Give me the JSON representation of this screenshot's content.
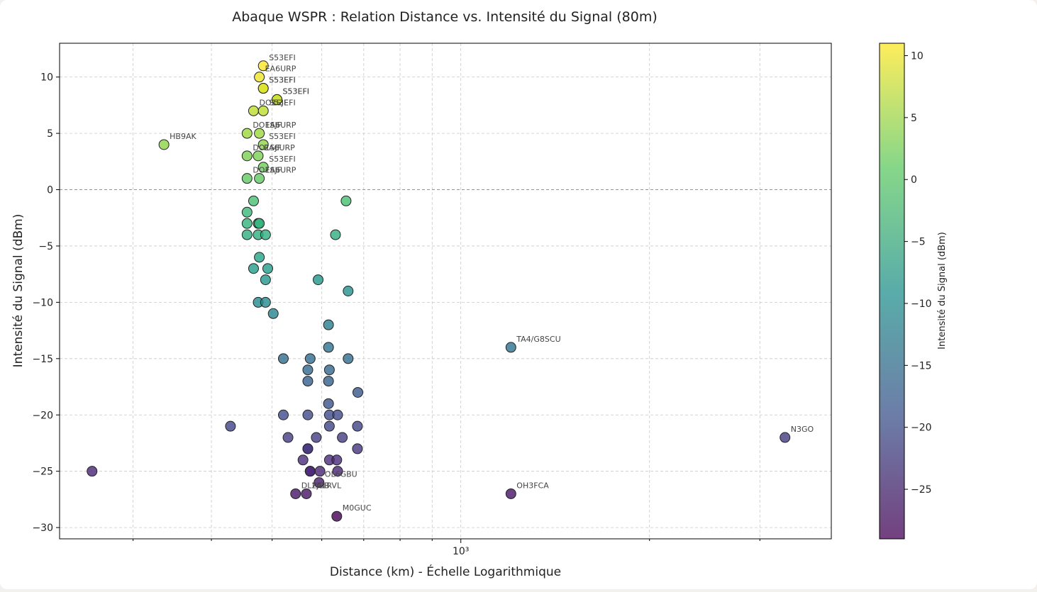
{
  "chart_data": {
    "type": "scatter",
    "title": "Abaque WSPR : Relation Distance vs. Intensité du Signal (80m)",
    "xlabel": "Distance (km) - Échelle Logarithmique",
    "ylabel": "Intensité du Signal (dBm)",
    "x_scale": "log",
    "x_tick_label": "10³",
    "xlim": [
      229,
      3900
    ],
    "ylim": [
      -31,
      13
    ],
    "yticks": [
      -30,
      -25,
      -20,
      -15,
      -10,
      -5,
      0,
      5,
      10
    ],
    "grid": true,
    "reference_line_y": 0,
    "colormap": "viridis",
    "colorbar": {
      "label": "Intensité du Signal (dBm)",
      "range": [
        -29,
        11
      ],
      "ticks": [
        -25,
        -20,
        -15,
        -10,
        -5,
        0,
        5,
        10
      ]
    },
    "points": [
      {
        "x": 258,
        "y": -25
      },
      {
        "x": 336,
        "y": 4,
        "label": "HB9AK"
      },
      {
        "x": 429,
        "y": -21
      },
      {
        "x": 484,
        "y": 11,
        "label": "S53EFI"
      },
      {
        "x": 477,
        "y": 10,
        "label": "EA6URP"
      },
      {
        "x": 484,
        "y": 9,
        "label": "S53EFI"
      },
      {
        "x": 484,
        "y": 9,
        "label": "S53EFI"
      },
      {
        "x": 509,
        "y": 8,
        "label": "S53EFI"
      },
      {
        "x": 509,
        "y": 8,
        "label": "S53EFI"
      },
      {
        "x": 467,
        "y": 7,
        "label": "DO1SJF"
      },
      {
        "x": 484,
        "y": 7,
        "label": "S53EFI"
      },
      {
        "x": 456,
        "y": 5,
        "label": "DO1SJF"
      },
      {
        "x": 477,
        "y": 5,
        "label": "EA6URP"
      },
      {
        "x": 484,
        "y": 4,
        "label": "S53EFI"
      },
      {
        "x": 456,
        "y": 3,
        "label": "DO1SJF"
      },
      {
        "x": 475,
        "y": 3,
        "label": "EA6URP"
      },
      {
        "x": 484,
        "y": 2,
        "label": "S53EFI"
      },
      {
        "x": 456,
        "y": 1,
        "label": "DO1SJF"
      },
      {
        "x": 477,
        "y": 1,
        "label": "EA6URP"
      },
      {
        "x": 467,
        "y": -1
      },
      {
        "x": 456,
        "y": -2
      },
      {
        "x": 456,
        "y": -3
      },
      {
        "x": 475,
        "y": -3
      },
      {
        "x": 477,
        "y": -3
      },
      {
        "x": 456,
        "y": -4
      },
      {
        "x": 475,
        "y": -4
      },
      {
        "x": 488,
        "y": -4
      },
      {
        "x": 477,
        "y": -6
      },
      {
        "x": 467,
        "y": -7
      },
      {
        "x": 492,
        "y": -7
      },
      {
        "x": 488,
        "y": -8
      },
      {
        "x": 475,
        "y": -10
      },
      {
        "x": 488,
        "y": -10
      },
      {
        "x": 502,
        "y": -11
      },
      {
        "x": 521,
        "y": -15
      },
      {
        "x": 521,
        "y": -20
      },
      {
        "x": 530,
        "y": -22
      },
      {
        "x": 560,
        "y": -24
      },
      {
        "x": 570,
        "y": -23
      },
      {
        "x": 570,
        "y": -23
      },
      {
        "x": 570,
        "y": -20
      },
      {
        "x": 570,
        "y": -16
      },
      {
        "x": 570,
        "y": -17
      },
      {
        "x": 575,
        "y": -15
      },
      {
        "x": 575,
        "y": -25
      },
      {
        "x": 575,
        "y": -25
      },
      {
        "x": 545,
        "y": -27,
        "label": "DL2JBB"
      },
      {
        "x": 567,
        "y": -27,
        "label": "PA1RVL"
      },
      {
        "x": 588,
        "y": -22
      },
      {
        "x": 592,
        "y": -8
      },
      {
        "x": 596,
        "y": -25
      },
      {
        "x": 594,
        "y": -26,
        "label": "OL6GBU"
      },
      {
        "x": 615,
        "y": -12
      },
      {
        "x": 615,
        "y": -14
      },
      {
        "x": 617,
        "y": -16
      },
      {
        "x": 615,
        "y": -17
      },
      {
        "x": 615,
        "y": -19
      },
      {
        "x": 617,
        "y": -20
      },
      {
        "x": 617,
        "y": -21
      },
      {
        "x": 617,
        "y": -24
      },
      {
        "x": 631,
        "y": -4
      },
      {
        "x": 634,
        "y": -24
      },
      {
        "x": 636,
        "y": -25
      },
      {
        "x": 636,
        "y": -20
      },
      {
        "x": 634,
        "y": -29,
        "label": "M0GUC"
      },
      {
        "x": 647,
        "y": -22
      },
      {
        "x": 656,
        "y": -1
      },
      {
        "x": 661,
        "y": -9
      },
      {
        "x": 661,
        "y": -15
      },
      {
        "x": 685,
        "y": -18
      },
      {
        "x": 684,
        "y": -21
      },
      {
        "x": 684,
        "y": -23
      },
      {
        "x": 1202,
        "y": -14,
        "label": "TA4/G8SCU"
      },
      {
        "x": 1202,
        "y": -27,
        "label": "OH3FCA"
      },
      {
        "x": 3290,
        "y": -22,
        "label": "N3GO"
      }
    ]
  }
}
